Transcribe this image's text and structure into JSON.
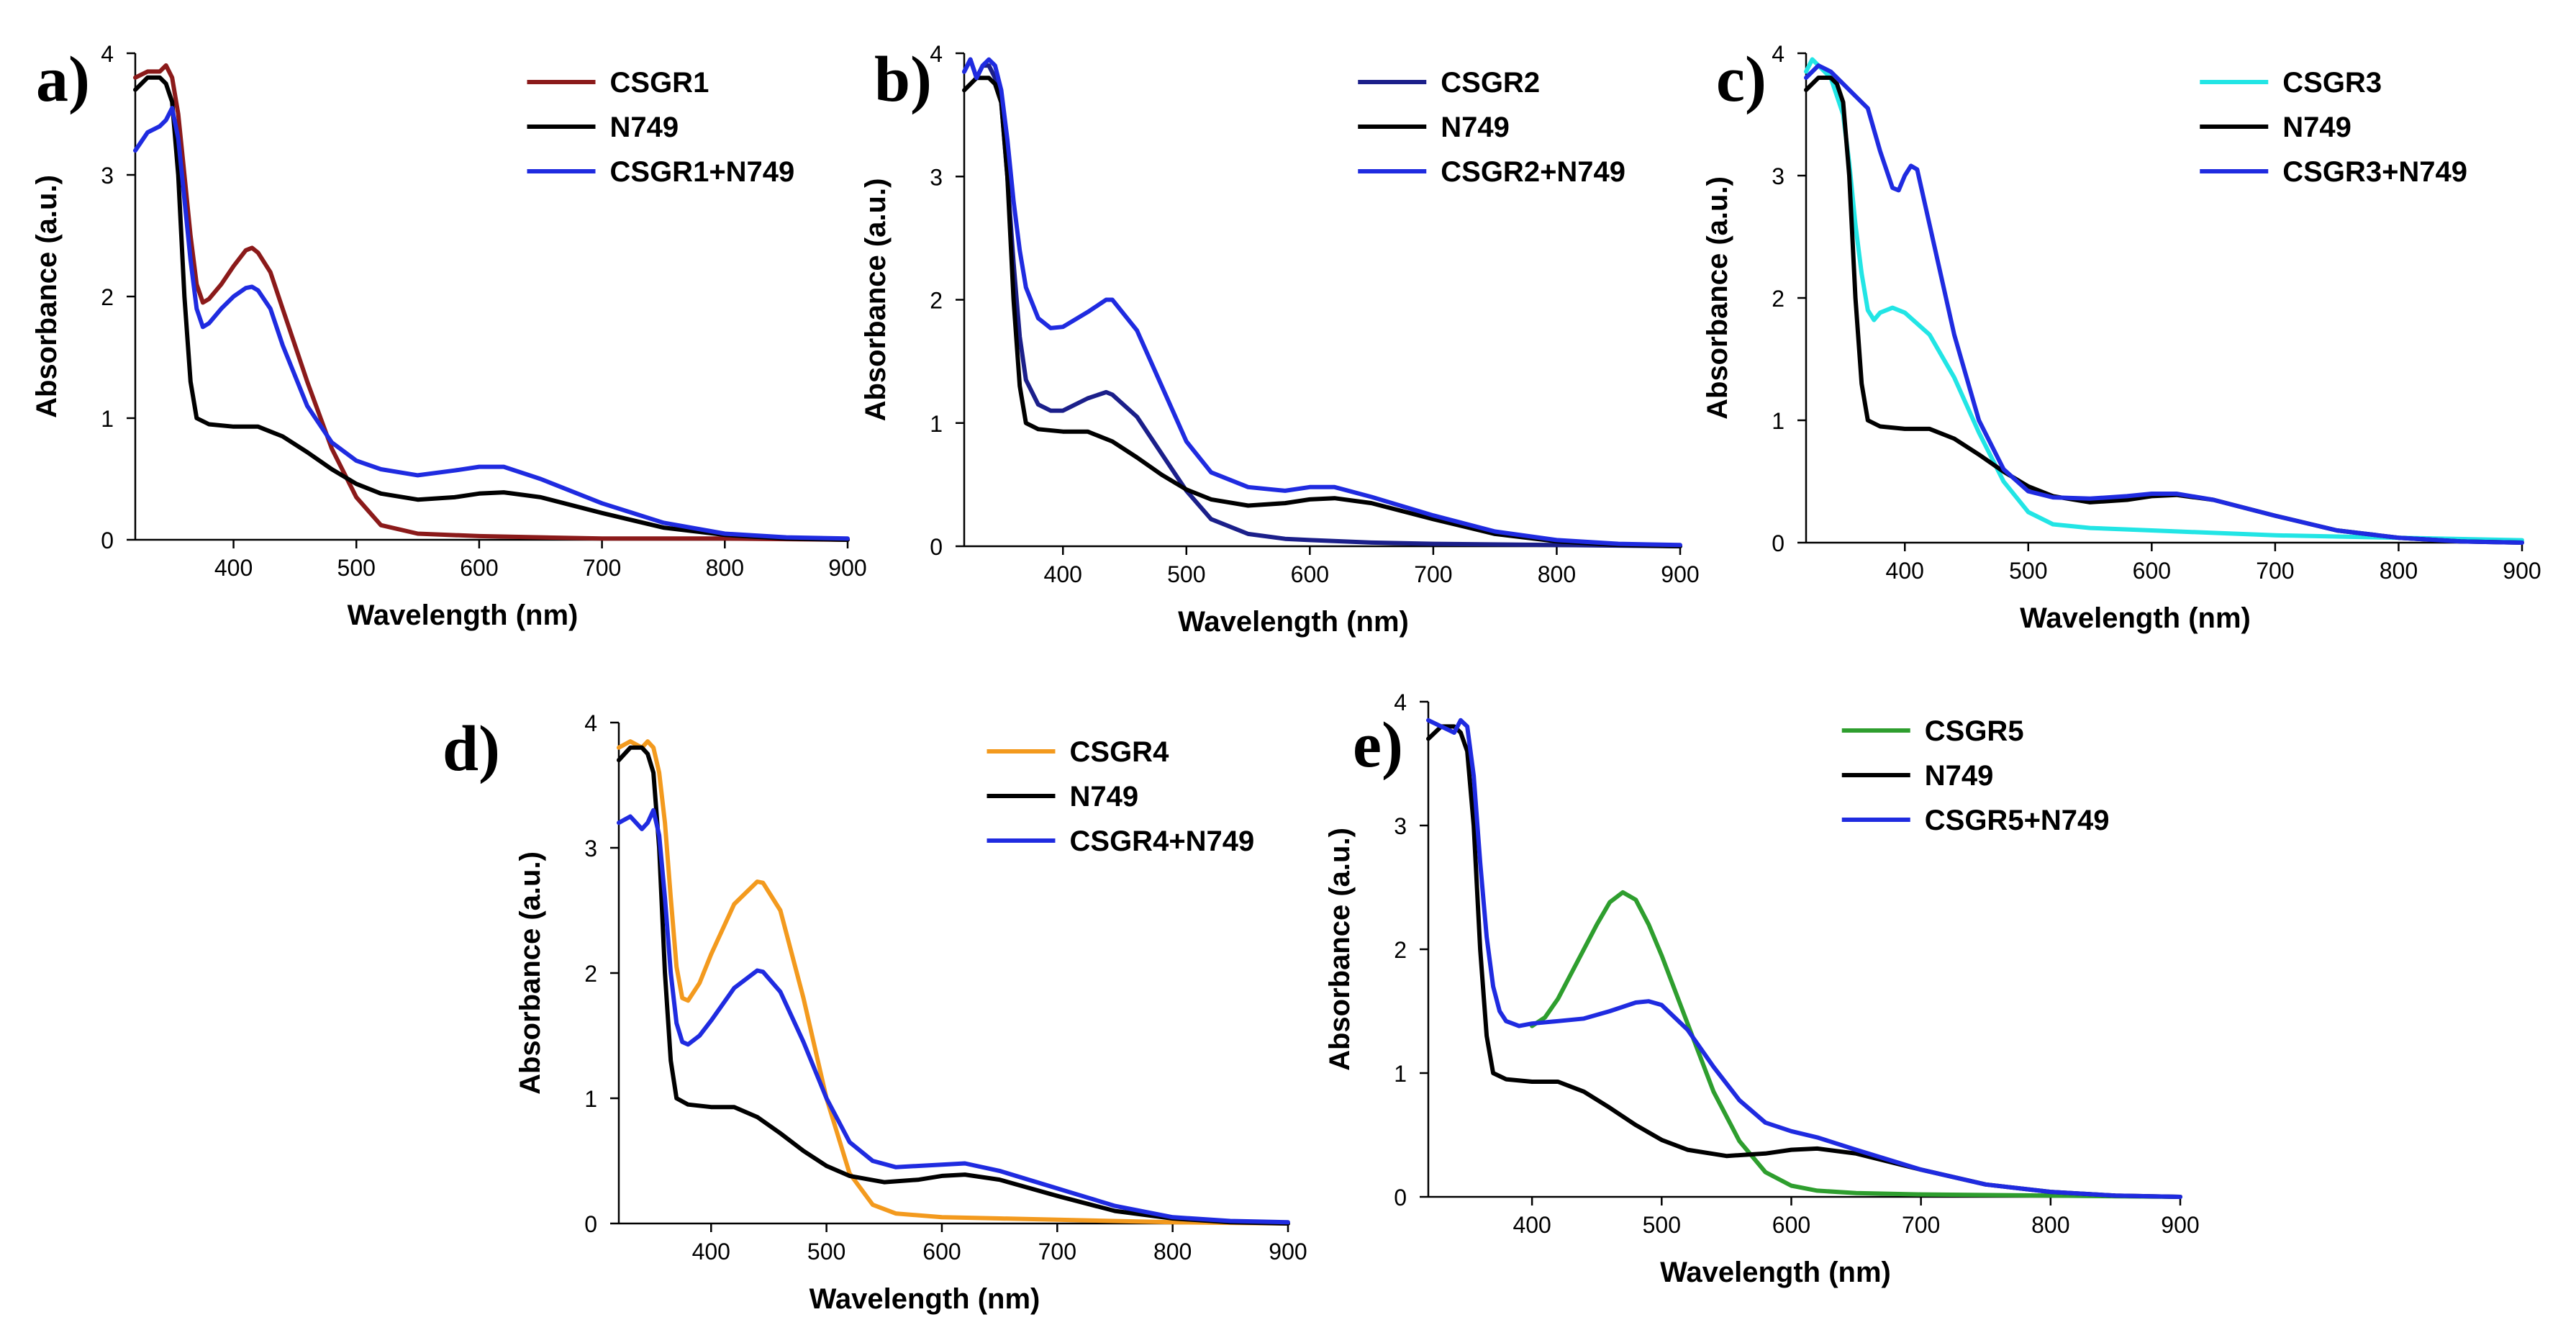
{
  "chart_data": [
    {
      "type": "line",
      "panel": "a)",
      "xlabel": "Wavelength (nm)",
      "ylabel": "Absorbance (a.u.)",
      "xlim": [
        320,
        900
      ],
      "ylim": [
        0,
        4
      ],
      "xticks": [
        400,
        500,
        600,
        700,
        800,
        900
      ],
      "yticks": [
        0,
        1,
        2,
        3,
        4
      ],
      "legend_position": "top-right",
      "series": [
        {
          "name": "CSGR1",
          "color": "#8b1a1a",
          "x": [
            320,
            330,
            340,
            345,
            350,
            355,
            360,
            365,
            370,
            375,
            380,
            390,
            400,
            410,
            415,
            420,
            430,
            440,
            460,
            480,
            500,
            520,
            550,
            600,
            650,
            700,
            800,
            900
          ],
          "y": [
            3.8,
            3.85,
            3.85,
            3.9,
            3.8,
            3.5,
            3.0,
            2.5,
            2.1,
            1.95,
            1.98,
            2.1,
            2.25,
            2.38,
            2.4,
            2.36,
            2.2,
            1.9,
            1.3,
            0.75,
            0.35,
            0.12,
            0.05,
            0.03,
            0.02,
            0.01,
            0.01,
            0.0
          ]
        },
        {
          "name": "N749",
          "color": "#000000",
          "x": [
            320,
            330,
            340,
            345,
            350,
            355,
            360,
            365,
            370,
            380,
            400,
            420,
            440,
            460,
            480,
            500,
            520,
            550,
            580,
            600,
            620,
            650,
            700,
            750,
            800,
            850,
            900
          ],
          "y": [
            3.7,
            3.8,
            3.8,
            3.75,
            3.6,
            3.0,
            2.0,
            1.3,
            1.0,
            0.95,
            0.93,
            0.93,
            0.85,
            0.72,
            0.58,
            0.46,
            0.38,
            0.33,
            0.35,
            0.38,
            0.39,
            0.35,
            0.22,
            0.1,
            0.04,
            0.01,
            0.0
          ]
        },
        {
          "name": "CSGR1+N749",
          "color": "#1f2be0",
          "x": [
            320,
            330,
            340,
            345,
            350,
            355,
            360,
            365,
            370,
            375,
            380,
            390,
            400,
            410,
            415,
            420,
            430,
            440,
            460,
            480,
            500,
            520,
            550,
            580,
            600,
            620,
            650,
            700,
            750,
            800,
            850,
            900
          ],
          "y": [
            3.2,
            3.35,
            3.4,
            3.45,
            3.55,
            3.3,
            2.8,
            2.3,
            1.9,
            1.75,
            1.78,
            1.9,
            2.0,
            2.07,
            2.08,
            2.05,
            1.9,
            1.6,
            1.1,
            0.8,
            0.65,
            0.58,
            0.53,
            0.57,
            0.6,
            0.6,
            0.5,
            0.3,
            0.14,
            0.05,
            0.02,
            0.01
          ]
        }
      ]
    },
    {
      "type": "line",
      "panel": "b)",
      "xlabel": "Wavelength (nm)",
      "ylabel": "Absorbance (a.u.)",
      "xlim": [
        320,
        900
      ],
      "ylim": [
        0,
        4
      ],
      "xticks": [
        400,
        500,
        600,
        700,
        800,
        900
      ],
      "yticks": [
        0,
        1,
        2,
        3,
        4
      ],
      "legend_position": "top-right",
      "series": [
        {
          "name": "CSGR2",
          "color": "#1b1f8a",
          "x": [
            320,
            325,
            330,
            335,
            340,
            345,
            350,
            355,
            360,
            365,
            370,
            380,
            390,
            400,
            420,
            435,
            440,
            460,
            480,
            500,
            520,
            550,
            580,
            600,
            650,
            700,
            800,
            900
          ],
          "y": [
            3.85,
            3.95,
            3.8,
            3.9,
            3.9,
            3.8,
            3.6,
            3.0,
            2.3,
            1.7,
            1.35,
            1.15,
            1.1,
            1.1,
            1.2,
            1.25,
            1.23,
            1.05,
            0.75,
            0.45,
            0.22,
            0.1,
            0.06,
            0.05,
            0.03,
            0.02,
            0.01,
            0.0
          ]
        },
        {
          "name": "N749",
          "color": "#000000",
          "x": [
            320,
            330,
            340,
            345,
            350,
            355,
            360,
            365,
            370,
            380,
            400,
            420,
            440,
            460,
            480,
            500,
            520,
            550,
            580,
            600,
            620,
            650,
            700,
            750,
            800,
            850,
            900
          ],
          "y": [
            3.7,
            3.8,
            3.8,
            3.75,
            3.6,
            3.0,
            2.0,
            1.3,
            1.0,
            0.95,
            0.93,
            0.93,
            0.85,
            0.72,
            0.58,
            0.46,
            0.38,
            0.33,
            0.35,
            0.38,
            0.39,
            0.35,
            0.22,
            0.1,
            0.04,
            0.01,
            0.0
          ]
        },
        {
          "name": "CSGR2+N749",
          "color": "#1f2be0",
          "x": [
            320,
            325,
            330,
            335,
            340,
            345,
            350,
            355,
            360,
            365,
            370,
            380,
            390,
            400,
            420,
            435,
            440,
            460,
            480,
            500,
            520,
            550,
            580,
            600,
            620,
            650,
            700,
            750,
            800,
            850,
            900
          ],
          "y": [
            3.85,
            3.95,
            3.8,
            3.9,
            3.95,
            3.9,
            3.7,
            3.3,
            2.8,
            2.4,
            2.1,
            1.85,
            1.77,
            1.78,
            1.9,
            2.0,
            2.0,
            1.75,
            1.3,
            0.85,
            0.6,
            0.48,
            0.45,
            0.48,
            0.48,
            0.4,
            0.25,
            0.12,
            0.05,
            0.02,
            0.01
          ]
        }
      ]
    },
    {
      "type": "line",
      "panel": "c)",
      "xlabel": "Wavelength (nm)",
      "ylabel": "Absorbance (a.u.)",
      "xlim": [
        320,
        900
      ],
      "ylim": [
        0,
        4
      ],
      "xticks": [
        400,
        500,
        600,
        700,
        800,
        900
      ],
      "yticks": [
        0,
        1,
        2,
        3,
        4
      ],
      "legend_position": "top-right",
      "series": [
        {
          "name": "CSGR3",
          "color": "#22e5e5",
          "x": [
            320,
            325,
            330,
            340,
            350,
            355,
            360,
            365,
            370,
            375,
            380,
            390,
            400,
            420,
            440,
            460,
            480,
            500,
            520,
            550,
            600,
            650,
            700,
            800,
            900
          ],
          "y": [
            3.85,
            3.95,
            3.9,
            3.8,
            3.5,
            3.1,
            2.6,
            2.2,
            1.9,
            1.82,
            1.88,
            1.92,
            1.88,
            1.7,
            1.35,
            0.9,
            0.5,
            0.25,
            0.15,
            0.12,
            0.1,
            0.08,
            0.06,
            0.04,
            0.02
          ]
        },
        {
          "name": "N749",
          "color": "#000000",
          "x": [
            320,
            330,
            340,
            345,
            350,
            355,
            360,
            365,
            370,
            380,
            400,
            420,
            440,
            460,
            480,
            500,
            520,
            550,
            580,
            600,
            620,
            650,
            700,
            750,
            800,
            850,
            900
          ],
          "y": [
            3.7,
            3.8,
            3.8,
            3.75,
            3.6,
            3.0,
            2.0,
            1.3,
            1.0,
            0.95,
            0.93,
            0.93,
            0.85,
            0.72,
            0.58,
            0.46,
            0.38,
            0.33,
            0.35,
            0.38,
            0.39,
            0.35,
            0.22,
            0.1,
            0.04,
            0.01,
            0.0
          ]
        },
        {
          "name": "CSGR3+N749",
          "color": "#1f2be0",
          "x": [
            320,
            325,
            330,
            340,
            350,
            360,
            370,
            380,
            390,
            395,
            400,
            405,
            410,
            420,
            440,
            460,
            480,
            500,
            520,
            550,
            580,
            600,
            620,
            650,
            700,
            750,
            800,
            850,
            900
          ],
          "y": [
            3.8,
            3.85,
            3.9,
            3.85,
            3.75,
            3.65,
            3.55,
            3.2,
            2.9,
            2.88,
            3.0,
            3.08,
            3.05,
            2.6,
            1.7,
            1.0,
            0.6,
            0.42,
            0.37,
            0.36,
            0.38,
            0.4,
            0.4,
            0.35,
            0.22,
            0.1,
            0.04,
            0.01,
            0.0
          ]
        }
      ]
    },
    {
      "type": "line",
      "panel": "d)",
      "xlabel": "Wavelength (nm)",
      "ylabel": "Absorbance (a.u.)",
      "xlim": [
        320,
        900
      ],
      "ylim": [
        0,
        4
      ],
      "xticks": [
        400,
        500,
        600,
        700,
        800,
        900
      ],
      "yticks": [
        0,
        1,
        2,
        3,
        4
      ],
      "legend_position": "top-right",
      "series": [
        {
          "name": "CSGR4",
          "color": "#f39a1e",
          "x": [
            320,
            330,
            340,
            345,
            350,
            355,
            360,
            365,
            370,
            375,
            380,
            390,
            400,
            420,
            440,
            445,
            460,
            480,
            500,
            520,
            540,
            560,
            600,
            650,
            700,
            800,
            900
          ],
          "y": [
            3.8,
            3.85,
            3.8,
            3.85,
            3.8,
            3.6,
            3.2,
            2.6,
            2.05,
            1.8,
            1.78,
            1.92,
            2.15,
            2.55,
            2.73,
            2.72,
            2.5,
            1.8,
            1.0,
            0.4,
            0.15,
            0.08,
            0.05,
            0.04,
            0.03,
            0.01,
            0.0
          ]
        },
        {
          "name": "N749",
          "color": "#000000",
          "x": [
            320,
            330,
            340,
            345,
            350,
            355,
            360,
            365,
            370,
            380,
            400,
            420,
            440,
            460,
            480,
            500,
            520,
            550,
            580,
            600,
            620,
            650,
            700,
            750,
            800,
            850,
            900
          ],
          "y": [
            3.7,
            3.8,
            3.8,
            3.75,
            3.6,
            3.0,
            2.0,
            1.3,
            1.0,
            0.95,
            0.93,
            0.93,
            0.85,
            0.72,
            0.58,
            0.46,
            0.38,
            0.33,
            0.35,
            0.38,
            0.39,
            0.35,
            0.22,
            0.1,
            0.04,
            0.01,
            0.0
          ]
        },
        {
          "name": "CSGR4+N749",
          "color": "#1f2be0",
          "x": [
            320,
            330,
            340,
            345,
            350,
            355,
            360,
            365,
            370,
            375,
            380,
            390,
            400,
            420,
            440,
            445,
            460,
            480,
            500,
            520,
            540,
            560,
            600,
            620,
            650,
            700,
            750,
            800,
            850,
            900
          ],
          "y": [
            3.2,
            3.25,
            3.15,
            3.2,
            3.3,
            3.1,
            2.6,
            2.0,
            1.6,
            1.45,
            1.43,
            1.5,
            1.62,
            1.88,
            2.02,
            2.01,
            1.85,
            1.45,
            1.0,
            0.65,
            0.5,
            0.45,
            0.47,
            0.48,
            0.42,
            0.28,
            0.14,
            0.05,
            0.02,
            0.01
          ]
        }
      ]
    },
    {
      "type": "line",
      "panel": "e)",
      "xlabel": "Wavelength (nm)",
      "ylabel": "Absorbance (a.u.)",
      "xlim": [
        320,
        900
      ],
      "ylim": [
        0,
        4
      ],
      "xticks": [
        400,
        500,
        600,
        700,
        800,
        900
      ],
      "yticks": [
        0,
        1,
        2,
        3,
        4
      ],
      "legend_position": "top-right",
      "series": [
        {
          "name": "CSGR5",
          "color": "#2e9e2e",
          "x": [
            400,
            410,
            420,
            430,
            440,
            450,
            460,
            470,
            480,
            490,
            500,
            520,
            540,
            560,
            580,
            600,
            620,
            650,
            700,
            800,
            900
          ],
          "y": [
            1.38,
            1.45,
            1.6,
            1.8,
            2.0,
            2.2,
            2.38,
            2.46,
            2.4,
            2.2,
            1.95,
            1.4,
            0.85,
            0.45,
            0.2,
            0.09,
            0.05,
            0.03,
            0.02,
            0.01,
            0.0
          ]
        },
        {
          "name": "N749",
          "color": "#000000",
          "x": [
            320,
            330,
            340,
            345,
            350,
            355,
            360,
            365,
            370,
            380,
            400,
            420,
            440,
            460,
            480,
            500,
            520,
            550,
            580,
            600,
            620,
            650,
            700,
            750,
            800,
            850,
            900
          ],
          "y": [
            3.7,
            3.8,
            3.8,
            3.75,
            3.6,
            3.0,
            2.0,
            1.3,
            1.0,
            0.95,
            0.93,
            0.93,
            0.85,
            0.72,
            0.58,
            0.46,
            0.38,
            0.33,
            0.35,
            0.38,
            0.39,
            0.35,
            0.22,
            0.1,
            0.04,
            0.01,
            0.0
          ]
        },
        {
          "name": "CSGR5+N749",
          "color": "#1f2be0",
          "x": [
            320,
            330,
            340,
            345,
            350,
            355,
            360,
            365,
            370,
            375,
            380,
            390,
            400,
            420,
            440,
            460,
            480,
            490,
            500,
            520,
            540,
            560,
            580,
            600,
            620,
            650,
            700,
            750,
            800,
            850,
            900
          ],
          "y": [
            3.85,
            3.8,
            3.75,
            3.85,
            3.8,
            3.4,
            2.7,
            2.1,
            1.7,
            1.5,
            1.42,
            1.38,
            1.4,
            1.42,
            1.44,
            1.5,
            1.57,
            1.58,
            1.55,
            1.35,
            1.05,
            0.78,
            0.6,
            0.53,
            0.48,
            0.38,
            0.22,
            0.1,
            0.04,
            0.01,
            0.0
          ]
        }
      ]
    }
  ]
}
